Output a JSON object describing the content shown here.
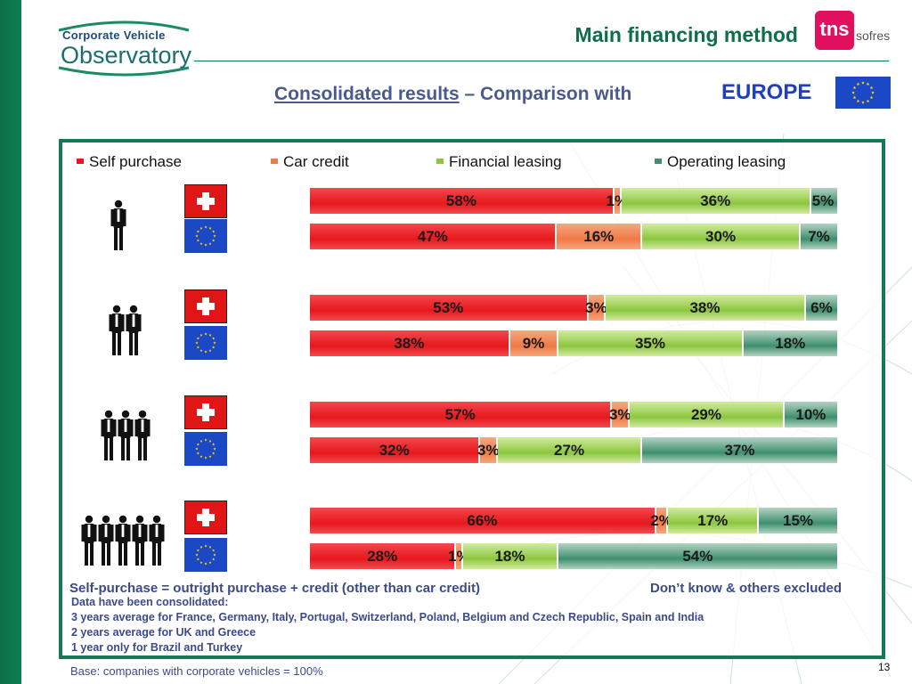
{
  "header": {
    "logo_line1": "Corporate Vehicle",
    "logo_line2": "Observatory",
    "title": "Main financing method",
    "tns_mark": "tns",
    "tns_sub": "sofres",
    "subtitle_underlined": "Consolidated results",
    "subtitle_rest": " – Comparison with",
    "europe_label": "EUROPE"
  },
  "colors": {
    "self_purchase": "#e8171c",
    "car_credit": "#f07a45",
    "financial_leasing": "#8cc63f",
    "operating_leasing": "#3e8f6e",
    "frame": "#127a55"
  },
  "icons": {
    "switzerland": "swiss-flag-icon",
    "europe": "eu-flag-icon",
    "fleet_size": "person-icon"
  },
  "chart_data": {
    "type": "bar",
    "orientation": "horizontal",
    "stacked": true,
    "categories": [
      "1 person (Switzerland)",
      "1 person (Europe)",
      "2 persons (Switzerland)",
      "2 persons (Europe)",
      "3 persons (Switzerland)",
      "3 persons (Europe)",
      "5 persons (Switzerland)",
      "5 persons (Europe)"
    ],
    "series": [
      {
        "name": "Self purchase",
        "values": [
          58,
          47,
          53,
          38,
          57,
          32,
          66,
          28
        ]
      },
      {
        "name": "Car credit",
        "values": [
          1,
          16,
          3,
          9,
          3,
          3,
          2,
          1
        ]
      },
      {
        "name": "Financial leasing",
        "values": [
          36,
          30,
          38,
          35,
          29,
          27,
          17,
          18
        ]
      },
      {
        "name": "Operating leasing",
        "values": [
          5,
          7,
          6,
          18,
          10,
          37,
          15,
          54
        ]
      }
    ],
    "labels": [
      [
        "58%",
        "1%",
        "36%",
        "5%"
      ],
      [
        "47%",
        "16%",
        "30%",
        "7%"
      ],
      [
        "53%",
        "3%",
        "38%",
        "6%"
      ],
      [
        "38%",
        "9%",
        "35%",
        "18%"
      ],
      [
        "57%",
        "3%",
        "29%",
        "10%"
      ],
      [
        "32%",
        "3%",
        "27%",
        "37%"
      ],
      [
        "66%",
        "2%",
        "17%",
        "15%"
      ],
      [
        "28%",
        "1%",
        "18%",
        "54%"
      ]
    ],
    "groups": [
      {
        "people": 1
      },
      {
        "people": 2
      },
      {
        "people": 3
      },
      {
        "people": 5
      }
    ],
    "legend_position": "top",
    "xlim": [
      0,
      100
    ]
  },
  "notes": {
    "self_purchase_def": "Self-purchase = outright purchase + credit (other than car credit)",
    "excluded": "Don’t know & others excluded",
    "consolidated_title": "Data have been consolidated:",
    "line1": "3 years average for France, Germany, Italy, Portugal, Switzerland, Poland, Belgium and Czech Republic, Spain and India",
    "line2": "2 years average for UK and Greece",
    "line3": "1 year only for Brazil and Turkey"
  },
  "footer": {
    "base": "Base: companies with corporate vehicles = 100%",
    "page_number": "13"
  }
}
